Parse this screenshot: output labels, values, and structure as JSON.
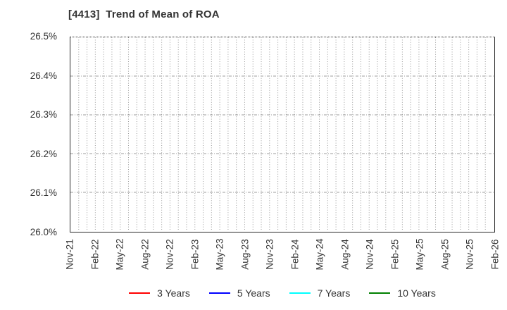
{
  "chart_data": {
    "type": "line",
    "title": "[4413]  Trend of Mean of ROA",
    "xlabel": "",
    "ylabel": "",
    "ylim": [
      26.0,
      26.5
    ],
    "y_tick_labels": [
      "26.0%",
      "26.1%",
      "26.2%",
      "26.3%",
      "26.4%",
      "26.5%"
    ],
    "x_tick_labels": [
      "Nov-21",
      "Feb-22",
      "May-22",
      "Aug-22",
      "Nov-22",
      "Feb-23",
      "May-23",
      "Aug-23",
      "Nov-23",
      "Feb-24",
      "May-24",
      "Aug-24",
      "Nov-24",
      "Feb-25",
      "May-25",
      "Aug-25",
      "Nov-25",
      "Feb-26"
    ],
    "x_months_total": 51,
    "x_label_every_months": 3,
    "grid": true,
    "legend_position": "bottom",
    "series": [
      {
        "name": "3 Years",
        "color": "#ff0000",
        "values": []
      },
      {
        "name": "5 Years",
        "color": "#0000ff",
        "values": []
      },
      {
        "name": "7 Years",
        "color": "#00ffff",
        "values": []
      },
      {
        "name": "10 Years",
        "color": "#008000",
        "values": []
      }
    ],
    "colors": {
      "title": "#333333",
      "tick_label": "#333333",
      "axis_border": "#2b2b2b",
      "gridline": "#9e9e9e",
      "plot_background": "#ffffff"
    }
  }
}
